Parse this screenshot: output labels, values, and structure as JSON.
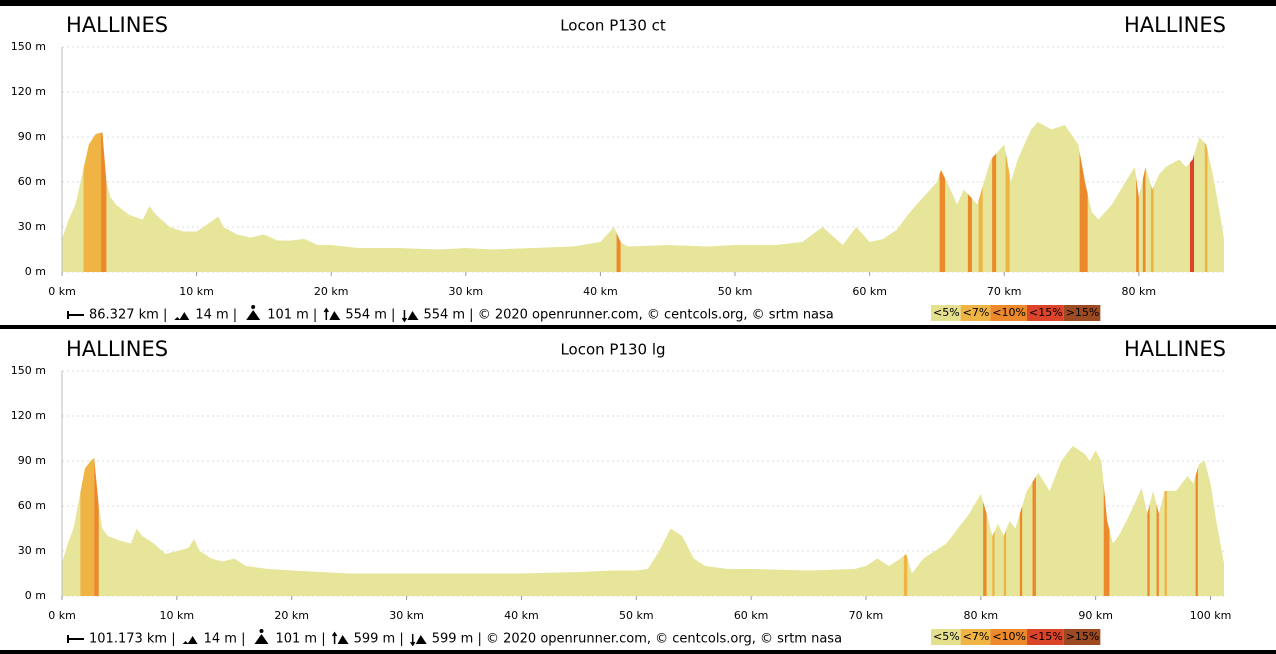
{
  "chart_data": [
    {
      "type": "area",
      "title": "Locon P130 ct",
      "start_label": "HALLINES",
      "end_label": "HALLINES",
      "x": [
        0,
        0.5,
        1,
        1.5,
        2,
        2.5,
        3,
        3.3,
        3.6,
        4,
        5,
        6,
        6.5,
        7,
        8,
        9,
        10,
        11,
        11.6,
        12,
        13,
        14,
        15,
        16,
        17,
        18,
        19,
        20,
        22,
        25,
        28,
        30,
        32,
        35,
        38,
        40,
        41,
        41.5,
        42,
        45,
        48,
        50,
        53,
        55,
        56.5,
        57.5,
        58,
        59,
        60,
        61,
        62,
        63,
        64,
        65,
        65.3,
        66,
        66.5,
        67,
        68,
        69,
        70,
        70.5,
        71,
        72,
        72.5,
        73.5,
        74.5,
        75.5,
        76,
        76.5,
        77,
        78,
        79,
        79.7,
        80,
        80.5,
        81,
        81.5,
        82,
        83,
        83.5,
        84,
        84.5,
        85,
        85.5,
        86,
        86.327
      ],
      "values": [
        22,
        35,
        45,
        65,
        85,
        92,
        93,
        60,
        50,
        45,
        38,
        35,
        44,
        38,
        30,
        27,
        27,
        33,
        37,
        30,
        25,
        23,
        25,
        21,
        21,
        22,
        18,
        18,
        16,
        16,
        15,
        16,
        15,
        16,
        17,
        20,
        30,
        20,
        17,
        18,
        17,
        18,
        18,
        20,
        30,
        22,
        18,
        30,
        20,
        22,
        28,
        40,
        50,
        60,
        68,
        55,
        45,
        55,
        45,
        75,
        85,
        60,
        75,
        95,
        100,
        95,
        98,
        85,
        60,
        40,
        35,
        45,
        60,
        70,
        50,
        70,
        55,
        65,
        70,
        75,
        70,
        75,
        90,
        85,
        65,
        40,
        22
      ],
      "xlim": [
        0,
        86.327
      ],
      "ylim": [
        0,
        150
      ],
      "xticks": [
        {
          "value": 0,
          "label": "0 km"
        },
        {
          "value": 10,
          "label": "10 km"
        },
        {
          "value": 20,
          "label": "20 km"
        },
        {
          "value": 30,
          "label": "30 km"
        },
        {
          "value": 40,
          "label": "40 km"
        },
        {
          "value": 50,
          "label": "50 km"
        },
        {
          "value": 60,
          "label": "60 km"
        },
        {
          "value": 70,
          "label": "70 km"
        },
        {
          "value": 80,
          "label": "80 km"
        }
      ],
      "yticks": [
        {
          "value": 0,
          "label": "0 m"
        },
        {
          "value": 30,
          "label": "30 m"
        },
        {
          "value": 60,
          "label": "60 m"
        },
        {
          "value": 90,
          "label": "90 m"
        },
        {
          "value": 120,
          "label": "120 m"
        },
        {
          "value": 150,
          "label": "150 m"
        }
      ],
      "grid": true,
      "color": "#e6e59a",
      "slope_bands": [
        {
          "start": 1.6,
          "end": 2.9,
          "color": "#efb443"
        },
        {
          "start": 2.9,
          "end": 3.3,
          "color": "#ec8a2b"
        },
        {
          "start": 41.2,
          "end": 41.5,
          "color": "#ec8a2b"
        },
        {
          "start": 65.2,
          "end": 65.6,
          "color": "#ec8a2b"
        },
        {
          "start": 67.3,
          "end": 67.6,
          "color": "#ec8a2b"
        },
        {
          "start": 68.1,
          "end": 68.4,
          "color": "#efb443"
        },
        {
          "start": 69.1,
          "end": 69.4,
          "color": "#ec8a2b"
        },
        {
          "start": 70.1,
          "end": 70.4,
          "color": "#efb443"
        },
        {
          "start": 75.6,
          "end": 76.2,
          "color": "#ec8a2b"
        },
        {
          "start": 79.8,
          "end": 80,
          "color": "#ec8a2b"
        },
        {
          "start": 80.3,
          "end": 80.5,
          "color": "#ec8a2b"
        },
        {
          "start": 80.9,
          "end": 81.1,
          "color": "#efb443"
        },
        {
          "start": 83.8,
          "end": 84.1,
          "color": "#dc442a"
        },
        {
          "start": 84.9,
          "end": 85.1,
          "color": "#efb443"
        }
      ],
      "footer": [
        "86.327 km |",
        "14 m |",
        "101 m |",
        "554 m |",
        "554 m | © 2020 openrunner.com, © centcols.org, © srtm nasa"
      ],
      "legend": [
        {
          "label": "<5%",
          "color": "#e4e08e"
        },
        {
          "label": "<7%",
          "color": "#efb443"
        },
        {
          "label": "<10%",
          "color": "#ec8a2b"
        },
        {
          "label": "<15%",
          "color": "#dc442a"
        },
        {
          "label": ">15%",
          "color": "#9b4a22"
        }
      ]
    },
    {
      "type": "area",
      "title": "Locon P130 lg",
      "start_label": "HALLINES",
      "end_label": "HALLINES",
      "x": [
        0,
        0.5,
        1,
        1.5,
        2,
        2.5,
        2.8,
        3.2,
        3.5,
        4,
        5,
        6,
        6.5,
        7,
        8,
        9,
        10,
        11,
        11.5,
        12,
        13,
        14,
        15,
        16,
        18,
        20,
        25,
        30,
        35,
        40,
        45,
        48,
        50,
        51,
        52,
        53,
        54,
        55,
        56,
        58,
        60,
        65,
        69,
        70,
        71,
        72,
        73,
        73.5,
        74,
        75,
        76,
        77,
        78,
        79,
        80,
        80.5,
        81,
        81.5,
        82,
        82.5,
        83,
        84,
        85,
        86,
        87,
        88,
        89,
        89.5,
        90,
        90.5,
        91,
        91.5,
        92,
        93,
        94,
        94.5,
        95,
        95.5,
        96,
        97,
        98,
        98.5,
        99,
        99.5,
        100,
        100.5,
        101.173
      ],
      "values": [
        22,
        35,
        45,
        65,
        85,
        90,
        92,
        60,
        45,
        40,
        37,
        35,
        45,
        40,
        35,
        28,
        30,
        32,
        38,
        30,
        25,
        23,
        25,
        20,
        18,
        17,
        15,
        15,
        15,
        15,
        16,
        17,
        17,
        18,
        30,
        45,
        40,
        25,
        20,
        18,
        18,
        17,
        18,
        20,
        25,
        20,
        25,
        28,
        15,
        25,
        30,
        35,
        45,
        55,
        68,
        55,
        40,
        48,
        40,
        50,
        45,
        70,
        82,
        70,
        90,
        100,
        95,
        90,
        97,
        90,
        50,
        35,
        40,
        55,
        72,
        55,
        70,
        55,
        70,
        70,
        80,
        75,
        88,
        90,
        75,
        50,
        22
      ],
      "xlim": [
        0,
        101.173
      ],
      "ylim": [
        0,
        150
      ],
      "xticks": [
        {
          "value": 0,
          "label": "0 km"
        },
        {
          "value": 10,
          "label": "10 km"
        },
        {
          "value": 20,
          "label": "20 km"
        },
        {
          "value": 30,
          "label": "30 km"
        },
        {
          "value": 40,
          "label": "40 km"
        },
        {
          "value": 50,
          "label": "50 km"
        },
        {
          "value": 60,
          "label": "60 km"
        },
        {
          "value": 70,
          "label": "70 km"
        },
        {
          "value": 80,
          "label": "80 km"
        },
        {
          "value": 90,
          "label": "90 km"
        },
        {
          "value": 100,
          "label": "100 km"
        }
      ],
      "yticks": [
        {
          "value": 0,
          "label": "0 m"
        },
        {
          "value": 30,
          "label": "30 m"
        },
        {
          "value": 60,
          "label": "60 m"
        },
        {
          "value": 90,
          "label": "90 m"
        },
        {
          "value": 120,
          "label": "120 m"
        },
        {
          "value": 150,
          "label": "150 m"
        }
      ],
      "grid": true,
      "color": "#e6e59a",
      "slope_bands": [
        {
          "start": 1.6,
          "end": 2.8,
          "color": "#efb443"
        },
        {
          "start": 2.8,
          "end": 3.2,
          "color": "#ec8a2b"
        },
        {
          "start": 73.3,
          "end": 73.6,
          "color": "#efb443"
        },
        {
          "start": 80.2,
          "end": 80.5,
          "color": "#ec8a2b"
        },
        {
          "start": 81,
          "end": 81.2,
          "color": "#efb443"
        },
        {
          "start": 82,
          "end": 82.2,
          "color": "#efb443"
        },
        {
          "start": 83.4,
          "end": 83.6,
          "color": "#ec8a2b"
        },
        {
          "start": 84.5,
          "end": 84.8,
          "color": "#ec8a2b"
        },
        {
          "start": 90.7,
          "end": 91.2,
          "color": "#ec8a2b"
        },
        {
          "start": 94.5,
          "end": 94.7,
          "color": "#ec8a2b"
        },
        {
          "start": 95.3,
          "end": 95.5,
          "color": "#ec8a2b"
        },
        {
          "start": 96,
          "end": 96.2,
          "color": "#efb443"
        },
        {
          "start": 98.7,
          "end": 98.9,
          "color": "#ec8a2b"
        }
      ],
      "footer": [
        "101.173 km |",
        "14 m |",
        "101 m |",
        "599 m |",
        "599 m | © 2020 openrunner.com, © centcols.org, © srtm nasa"
      ],
      "legend": [
        {
          "label": "<5%",
          "color": "#e4e08e"
        },
        {
          "label": "<7%",
          "color": "#efb443"
        },
        {
          "label": "<10%",
          "color": "#ec8a2b"
        },
        {
          "label": "<15%",
          "color": "#dc442a"
        },
        {
          "label": ">15%",
          "color": "#9b4a22"
        }
      ]
    }
  ]
}
